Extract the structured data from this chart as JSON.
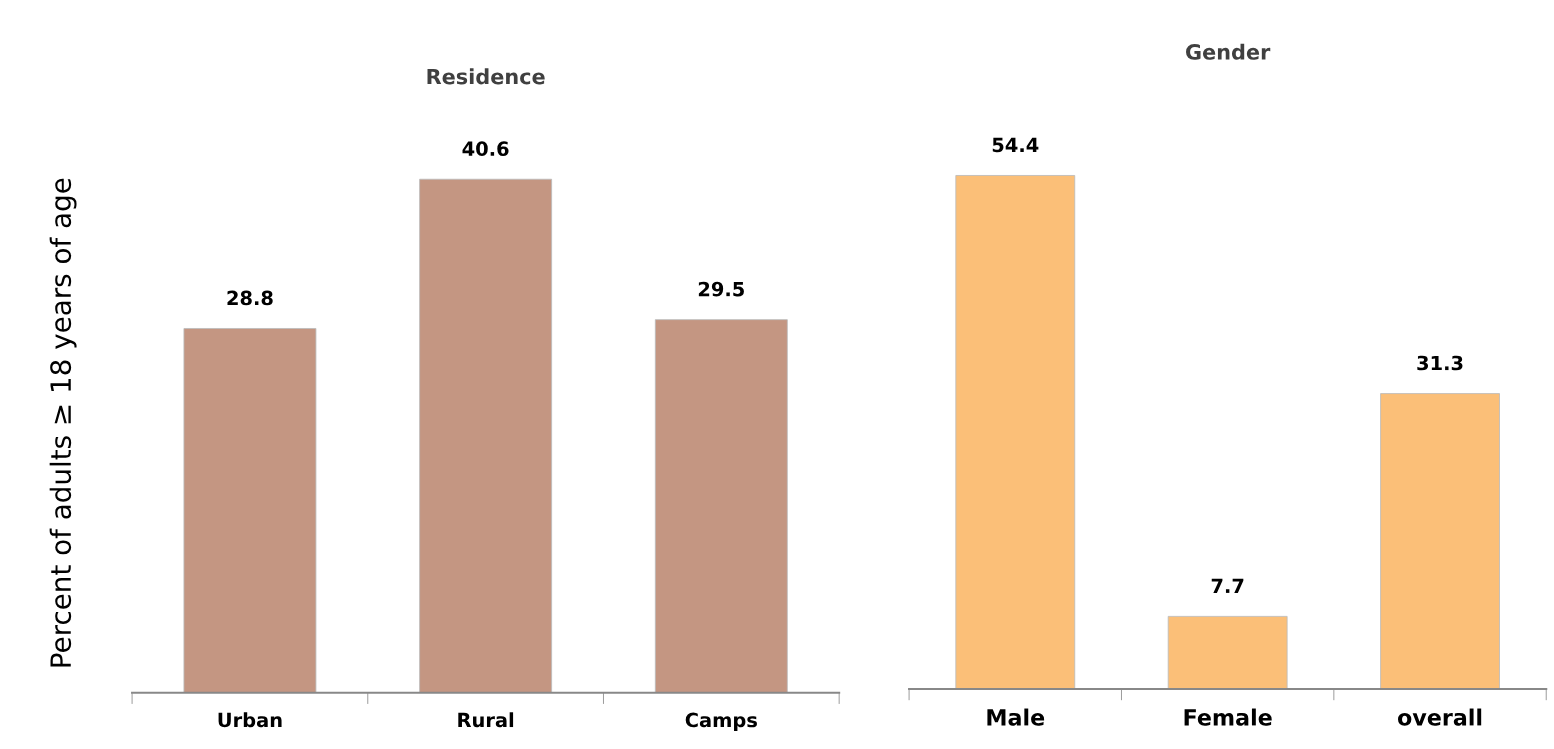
{
  "chart_data": [
    {
      "type": "bar",
      "title": "Residence",
      "ylabel": "Percent of adults ≥ 18 years of age",
      "categories": [
        "Urban",
        "Rural",
        "Camps"
      ],
      "values": [
        28.8,
        40.6,
        29.5
      ],
      "color": "#c49682",
      "data_labels": true
    },
    {
      "type": "bar",
      "title": "Gender",
      "categories": [
        "Male",
        "Female",
        "overall"
      ],
      "values": [
        54.4,
        7.7,
        31.3
      ],
      "color": "#fbbf78",
      "data_labels": true
    }
  ]
}
